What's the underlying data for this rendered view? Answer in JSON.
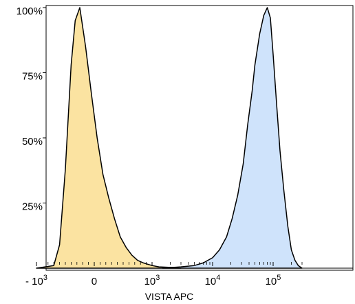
{
  "chart_data": {
    "type": "area",
    "xlabel": "VISTA APC",
    "ylabel": "",
    "x_scale": "biexponential",
    "x_ticks": [
      {
        "base": "- 10",
        "exp": "3",
        "value": -1000
      },
      {
        "base": "0",
        "exp": "",
        "value": 0
      },
      {
        "base": "10",
        "exp": "3",
        "value": 1000
      },
      {
        "base": "10",
        "exp": "4",
        "value": 10000
      },
      {
        "base": "10",
        "exp": "5",
        "value": 100000
      }
    ],
    "y_ticks": [
      "100%",
      "75%",
      "50%",
      "25%"
    ],
    "y_tick_values": [
      100,
      75,
      50,
      25
    ],
    "ylim": [
      0,
      100
    ],
    "grid": false,
    "legend": "none",
    "series": [
      {
        "color": "#fbe3a1",
        "points": [
          [
            -1000,
            0
          ],
          [
            -700,
            1
          ],
          [
            -600,
            9
          ],
          [
            -500,
            38
          ],
          [
            -400,
            78
          ],
          [
            -330,
            95
          ],
          [
            -250,
            100
          ],
          [
            -150,
            85
          ],
          [
            -50,
            67
          ],
          [
            50,
            50
          ],
          [
            150,
            36
          ],
          [
            250,
            27
          ],
          [
            350,
            19
          ],
          [
            450,
            12
          ],
          [
            550,
            8
          ],
          [
            650,
            5
          ],
          [
            750,
            3
          ],
          [
            850,
            2
          ],
          [
            1000,
            1
          ],
          [
            1300,
            0.5
          ],
          [
            2000,
            0.3
          ],
          [
            3000,
            0
          ]
        ]
      },
      {
        "color": "#cfe3fb",
        "points": [
          [
            1500,
            0
          ],
          [
            3000,
            0.5
          ],
          [
            5000,
            1
          ],
          [
            7000,
            2
          ],
          [
            10000,
            4
          ],
          [
            13000,
            7
          ],
          [
            17000,
            12
          ],
          [
            21000,
            19
          ],
          [
            26000,
            28
          ],
          [
            32000,
            40
          ],
          [
            38000,
            55
          ],
          [
            45000,
            68
          ],
          [
            50000,
            78
          ],
          [
            60000,
            90
          ],
          [
            70000,
            97
          ],
          [
            80000,
            100
          ],
          [
            90000,
            96
          ],
          [
            100000,
            82
          ],
          [
            115000,
            62
          ],
          [
            130000,
            45
          ],
          [
            150000,
            30
          ],
          [
            175000,
            16
          ],
          [
            200000,
            7
          ],
          [
            230000,
            3
          ],
          [
            260000,
            1
          ],
          [
            300000,
            0
          ]
        ]
      }
    ]
  }
}
